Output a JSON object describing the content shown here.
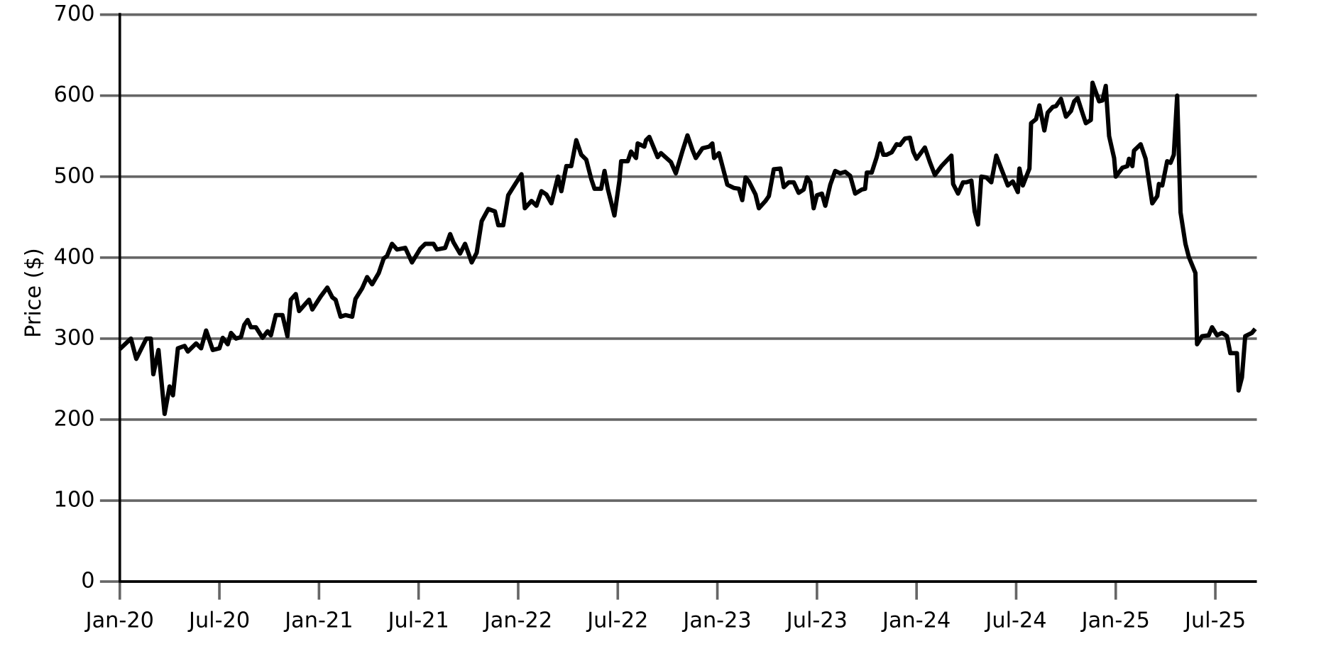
{
  "chart_data": {
    "type": "line",
    "y_label": "Price ($)",
    "color": "#000000",
    "grid": true,
    "grid_color": "#666666",
    "xlim": [
      0,
      68.5
    ],
    "ylim": [
      0,
      700
    ],
    "yticks": [
      0,
      100,
      200,
      300,
      400,
      500,
      600,
      700
    ],
    "xticks": [
      {
        "value": 0,
        "label": "Jan-20"
      },
      {
        "value": 6,
        "label": "Jul-20"
      },
      {
        "value": 12,
        "label": "Jan-21"
      },
      {
        "value": 18,
        "label": "Jul-21"
      },
      {
        "value": 24,
        "label": "Jan-22"
      },
      {
        "value": 30,
        "label": "Jul-22"
      },
      {
        "value": 36,
        "label": "Jan-23"
      },
      {
        "value": 42,
        "label": "Jul-23"
      },
      {
        "value": 48,
        "label": "Jan-24"
      },
      {
        "value": 54,
        "label": "Jul-24"
      },
      {
        "value": 60,
        "label": "Jan-25"
      },
      {
        "value": 66,
        "label": "Jul-25"
      }
    ],
    "x": [
      0,
      0.67,
      0.99,
      1.6,
      1.87,
      2.02,
      2.33,
      2.7,
      3.0,
      3.2,
      3.5,
      3.9,
      4.1,
      4.6,
      4.9,
      5.2,
      5.6,
      6.0,
      6.2,
      6.5,
      6.7,
      7.0,
      7.3,
      7.5,
      7.7,
      7.9,
      8.2,
      8.6,
      8.9,
      9.1,
      9.4,
      9.8,
      10.1,
      10.3,
      10.6,
      10.8,
      11.4,
      11.6,
      12.1,
      12.5,
      12.8,
      13.0,
      13.3,
      13.6,
      14.0,
      14.2,
      14.6,
      14.9,
      15.2,
      15.6,
      15.9,
      16.1,
      16.4,
      16.7,
      17.2,
      17.6,
      18.1,
      18.4,
      18.9,
      19.1,
      19.6,
      19.9,
      20.1,
      20.5,
      20.8,
      21.2,
      21.5,
      21.8,
      22.2,
      22.6,
      22.8,
      23.1,
      23.4,
      23.8,
      24.2,
      24.4,
      24.8,
      25.1,
      25.4,
      25.7,
      26.0,
      26.4,
      26.6,
      26.9,
      27.2,
      27.5,
      27.8,
      28.1,
      28.4,
      28.6,
      29.0,
      29.2,
      29.4,
      29.8,
      30.1,
      30.2,
      30.6,
      30.8,
      31.1,
      31.2,
      31.6,
      31.7,
      31.9,
      32.4,
      32.6,
      33.2,
      33.5,
      33.9,
      34.2,
      34.5,
      34.7,
      35.1,
      35.5,
      35.7,
      35.8,
      36.1,
      36.6,
      37.0,
      37.3,
      37.5,
      37.7,
      37.9,
      38.3,
      38.5,
      38.9,
      39.1,
      39.4,
      39.8,
      40.0,
      40.3,
      40.6,
      40.9,
      41.2,
      41.4,
      41.6,
      41.8,
      42.0,
      42.3,
      42.5,
      42.8,
      43.1,
      43.4,
      43.7,
      44.0,
      44.3,
      44.7,
      44.9,
      45.0,
      45.3,
      45.6,
      45.8,
      46.0,
      46.2,
      46.5,
      46.8,
      47.0,
      47.3,
      47.6,
      47.8,
      48.0,
      48.5,
      48.8,
      49.1,
      49.5,
      50.1,
      50.2,
      50.5,
      50.8,
      51.0,
      51.3,
      51.5,
      51.7,
      51.9,
      52.2,
      52.5,
      52.8,
      53.1,
      53.5,
      53.8,
      54.1,
      54.2,
      54.4,
      54.8,
      54.9,
      55.2,
      55.4,
      55.7,
      55.9,
      56.2,
      56.4,
      56.7,
      57.0,
      57.3,
      57.5,
      57.7,
      58.0,
      58.2,
      58.5,
      58.6,
      59.0,
      59.2,
      59.4,
      59.6,
      59.9,
      60.0,
      60.4,
      60.7,
      60.8,
      61.0,
      61.1,
      61.5,
      61.8,
      62.2,
      62.5,
      62.6,
      62.8,
      63.1,
      63.3,
      63.5,
      63.7,
      63.9,
      64.2,
      64.4,
      64.8,
      64.9,
      65.2,
      65.6,
      65.8,
      66.1,
      66.4,
      66.7,
      66.9,
      67.3,
      67.4,
      67.6,
      67.8,
      68.2,
      68.4
    ],
    "values": [
      287,
      300,
      275,
      300,
      300,
      256,
      286,
      207,
      241,
      230,
      288,
      291,
      284,
      294,
      288,
      310,
      286,
      288,
      301,
      293,
      307,
      300,
      302,
      317,
      323,
      314,
      314,
      301,
      309,
      304,
      329,
      329,
      303,
      348,
      355,
      334,
      348,
      336,
      352,
      363,
      351,
      348,
      327,
      329,
      327,
      349,
      362,
      376,
      367,
      381,
      399,
      402,
      417,
      410,
      412,
      394,
      411,
      417,
      417,
      410,
      412,
      429,
      419,
      405,
      417,
      394,
      406,
      445,
      460,
      457,
      440,
      440,
      477,
      490,
      503,
      461,
      470,
      464,
      482,
      478,
      467,
      500,
      482,
      513,
      513,
      545,
      527,
      521,
      497,
      485,
      485,
      507,
      485,
      452,
      495,
      519,
      519,
      531,
      523,
      541,
      537,
      545,
      549,
      524,
      529,
      518,
      504,
      532,
      551,
      533,
      523,
      535,
      537,
      541,
      523,
      529,
      490,
      486,
      485,
      471,
      499,
      494,
      478,
      461,
      470,
      476,
      509,
      510,
      487,
      493,
      493,
      480,
      484,
      499,
      493,
      461,
      477,
      479,
      464,
      490,
      507,
      504,
      506,
      501,
      479,
      484,
      485,
      505,
      505,
      524,
      541,
      527,
      527,
      530,
      540,
      539,
      547,
      548,
      531,
      522,
      536,
      518,
      502,
      513,
      526,
      491,
      479,
      493,
      493,
      495,
      457,
      441,
      500,
      499,
      493,
      526,
      510,
      489,
      494,
      481,
      510,
      489,
      510,
      566,
      571,
      588,
      557,
      579,
      586,
      587,
      596,
      574,
      581,
      593,
      597,
      578,
      566,
      570,
      616,
      593,
      594,
      612,
      550,
      523,
      500,
      511,
      513,
      522,
      513,
      532,
      540,
      522,
      467,
      476,
      491,
      489,
      519,
      517,
      527,
      600,
      456,
      417,
      401,
      381,
      293,
      303,
      304,
      314,
      304,
      307,
      303,
      282,
      282,
      236,
      252,
      303,
      307,
      312
    ]
  }
}
